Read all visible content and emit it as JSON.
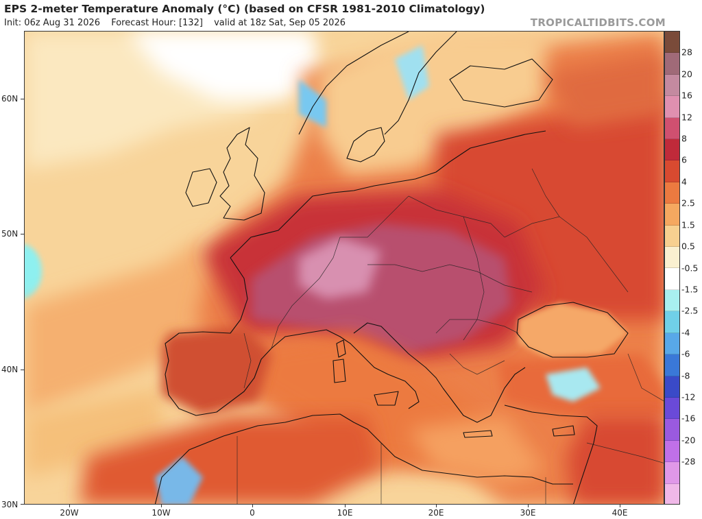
{
  "header": {
    "title": "EPS 2-meter Temperature Anomaly (°C) (based on CFSR 1981-2010 Climatology)",
    "init": "Init: 06z Aug 31 2026",
    "forecast_hour": "Forecast Hour: [132]",
    "valid": "valid at 18z Sat, Sep 05 2026"
  },
  "brand": "TROPICALTIDBITS.COM",
  "axes": {
    "latitudes": [
      "60N",
      "50N",
      "40N",
      "30N"
    ],
    "longitudes": [
      "20W",
      "10W",
      "0",
      "10E",
      "20E",
      "30E",
      "40E"
    ]
  },
  "colorbar": {
    "labels": [
      "28",
      "20",
      "16",
      "12",
      "8",
      "6",
      "4",
      "2.5",
      "1.5",
      "0.5",
      "-0.5",
      "-1.5",
      "-2.5",
      "-4",
      "-6",
      "-8",
      "-12",
      "-16",
      "-20",
      "-28"
    ],
    "colors": [
      "#7a4b3a",
      "#a06a78",
      "#c48aa0",
      "#e090b0",
      "#d05070",
      "#c02a3a",
      "#d84a30",
      "#ec7a40",
      "#f5a860",
      "#f7d090",
      "#faf0d0",
      "#ffffff",
      "#a8f0f0",
      "#70d0e8",
      "#58a8e8",
      "#3a78d8",
      "#3a4ac8",
      "#6a4ad8",
      "#9a5ae0",
      "#c070e8",
      "#e098e8",
      "#f0b8e8"
    ]
  },
  "map": {
    "region": "Europe, North Africa and Middle East"
  }
}
